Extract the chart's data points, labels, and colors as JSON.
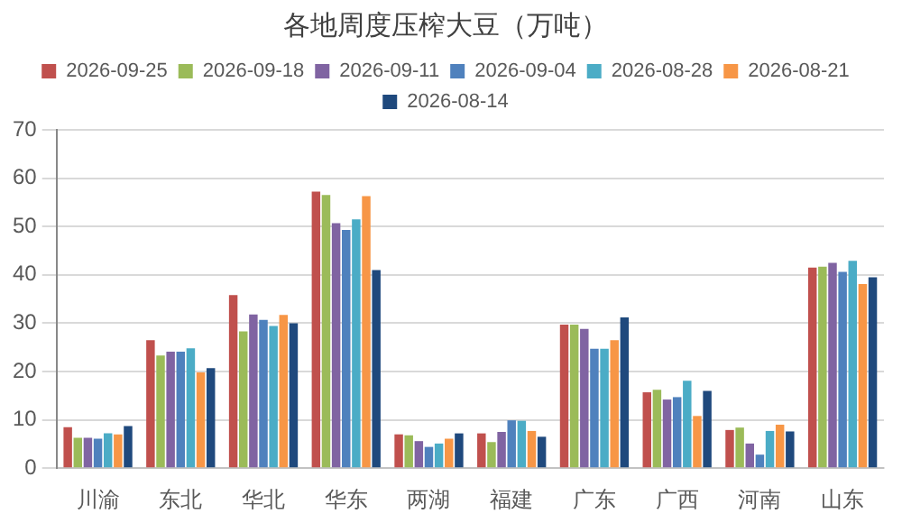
{
  "chart_data": {
    "type": "bar",
    "title": "各地周度压榨大豆（万吨）",
    "categories": [
      "川渝",
      "东北",
      "华北",
      "华东",
      "两湖",
      "福建",
      "广东",
      "广西",
      "河南",
      "山东"
    ],
    "series": [
      {
        "name": "2026-09-25",
        "color": "#c0504d",
        "values": [
          8.5,
          26.5,
          35.8,
          57.2,
          7.0,
          7.2,
          29.7,
          15.7,
          7.9,
          41.5
        ]
      },
      {
        "name": "2026-09-18",
        "color": "#9bbb59",
        "values": [
          6.3,
          23.3,
          28.3,
          56.5,
          6.8,
          5.4,
          29.7,
          16.2,
          8.4,
          41.7
        ]
      },
      {
        "name": "2026-09-11",
        "color": "#8064a2",
        "values": [
          6.3,
          24.1,
          31.8,
          50.7,
          5.6,
          7.5,
          28.8,
          14.2,
          5.1,
          42.5
        ]
      },
      {
        "name": "2026-09-04",
        "color": "#4f81bd",
        "values": [
          6.1,
          24.1,
          30.7,
          49.3,
          4.4,
          9.9,
          24.7,
          14.7,
          2.8,
          40.6
        ]
      },
      {
        "name": "2026-08-28",
        "color": "#4bacc6",
        "values": [
          7.2,
          24.8,
          29.4,
          51.5,
          5.1,
          9.8,
          24.7,
          18.1,
          7.7,
          42.9
        ]
      },
      {
        "name": "2026-08-21",
        "color": "#f79646",
        "values": [
          7.0,
          19.8,
          31.7,
          56.3,
          6.1,
          7.7,
          26.5,
          10.8,
          9.0,
          38.1
        ]
      },
      {
        "name": "2026-08-14",
        "color": "#1f497d",
        "values": [
          8.7,
          20.7,
          30.0,
          41.0,
          7.2,
          6.5,
          31.2,
          16.0,
          7.6,
          39.5
        ]
      }
    ],
    "ylim": [
      0,
      70
    ],
    "yticks": [
      0,
      10,
      20,
      30,
      40,
      50,
      60,
      70
    ],
    "grid": "y",
    "legend": "top"
  }
}
